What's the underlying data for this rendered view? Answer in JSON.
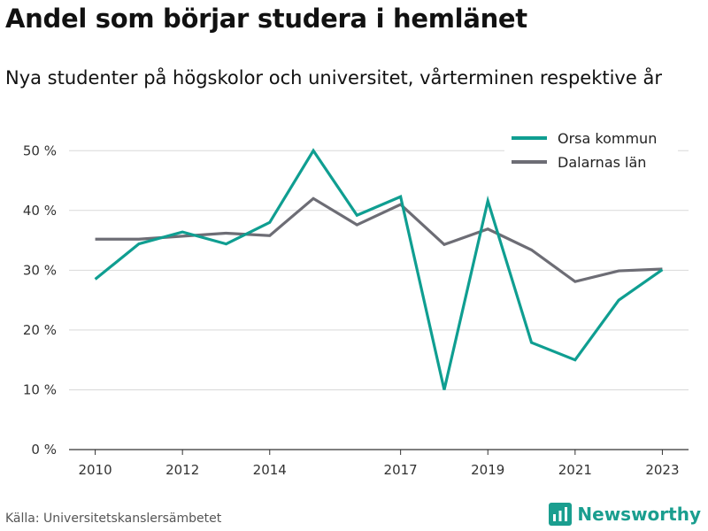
{
  "title": "Andel som börjar studera i hemlänet",
  "subtitle": "Nya studenter på högskolor och universitet, vårterminen respektive år",
  "source": "Källa: Universitetskanslersämbetet",
  "brand": "Newsworthy",
  "chart_data": {
    "type": "line",
    "x": [
      2010,
      2011,
      2012,
      2013,
      2014,
      2015,
      2016,
      2017,
      2018,
      2019,
      2020,
      2021,
      2022,
      2023
    ],
    "x_ticks": [
      2010,
      2012,
      2014,
      2017,
      2019,
      2021,
      2023
    ],
    "y_ticks": [
      0,
      10,
      20,
      30,
      40,
      50
    ],
    "y_tick_labels": [
      "0 %",
      "10 %",
      "20 %",
      "30 %",
      "40 %",
      "50 %"
    ],
    "ylim": [
      0,
      53
    ],
    "xlim": [
      2009.4,
      2023.6
    ],
    "grid": true,
    "legend_position": "top-right",
    "series": [
      {
        "name": "Orsa kommun",
        "color": "#0f9e91",
        "values": [
          28.5,
          34.4,
          36.4,
          34.4,
          38.0,
          50.0,
          39.2,
          42.3,
          10.0,
          41.6,
          17.9,
          15.0,
          25.0,
          30.1
        ]
      },
      {
        "name": "Dalarnas län",
        "color": "#6d6d75",
        "values": [
          35.2,
          35.2,
          35.7,
          36.2,
          35.8,
          42.0,
          37.6,
          41.0,
          34.3,
          36.9,
          33.4,
          28.1,
          29.9,
          30.2
        ]
      }
    ]
  }
}
